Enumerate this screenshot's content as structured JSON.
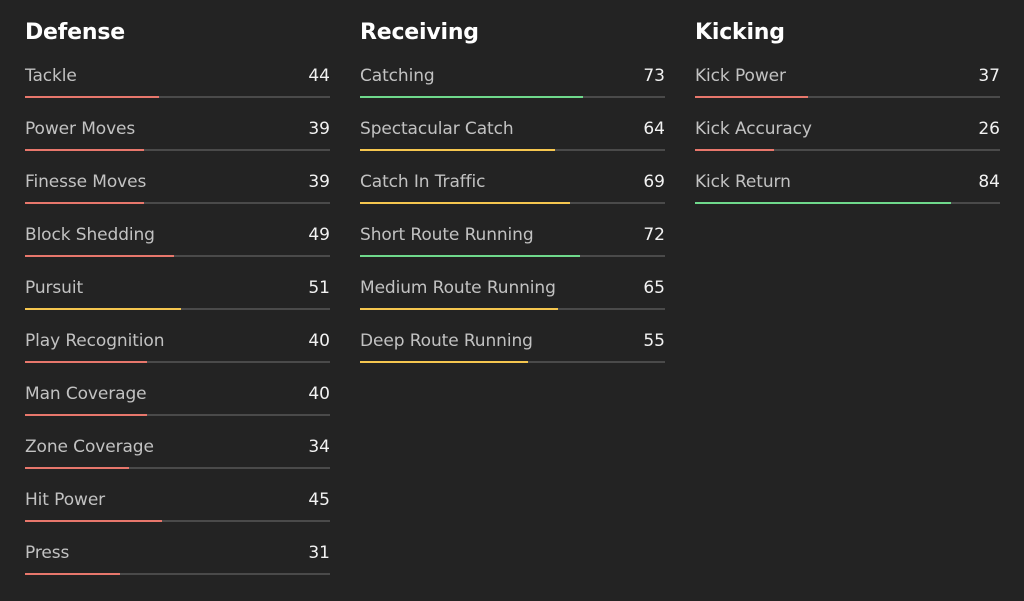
{
  "colors": {
    "low": "#e8776c",
    "mid": "#f5c64f",
    "high": "#6fd98c",
    "track": "#4a4a4a"
  },
  "sections": [
    {
      "title": "Defense",
      "stats": [
        {
          "label": "Tackle",
          "value": "44",
          "rating": 44,
          "tier": "low"
        },
        {
          "label": "Power Moves",
          "value": "39",
          "rating": 39,
          "tier": "low"
        },
        {
          "label": "Finesse Moves",
          "value": "39",
          "rating": 39,
          "tier": "low"
        },
        {
          "label": "Block Shedding",
          "value": "49",
          "rating": 49,
          "tier": "low"
        },
        {
          "label": "Pursuit",
          "value": "51",
          "rating": 51,
          "tier": "mid"
        },
        {
          "label": "Play Recognition",
          "value": "40",
          "rating": 40,
          "tier": "low"
        },
        {
          "label": "Man Coverage",
          "value": "40",
          "rating": 40,
          "tier": "low"
        },
        {
          "label": "Zone Coverage",
          "value": "34",
          "rating": 34,
          "tier": "low"
        },
        {
          "label": "Hit Power",
          "value": "45",
          "rating": 45,
          "tier": "low"
        },
        {
          "label": "Press",
          "value": "31",
          "rating": 31,
          "tier": "low"
        }
      ]
    },
    {
      "title": "Receiving",
      "stats": [
        {
          "label": "Catching",
          "value": "73",
          "rating": 73,
          "tier": "high"
        },
        {
          "label": "Spectacular Catch",
          "value": "64",
          "rating": 64,
          "tier": "mid"
        },
        {
          "label": "Catch In Traffic",
          "value": "69",
          "rating": 69,
          "tier": "mid"
        },
        {
          "label": "Short Route Running",
          "value": "72",
          "rating": 72,
          "tier": "high"
        },
        {
          "label": "Medium Route Running",
          "value": "65",
          "rating": 65,
          "tier": "mid"
        },
        {
          "label": "Deep Route Running",
          "value": "55",
          "rating": 55,
          "tier": "mid"
        }
      ]
    },
    {
      "title": "Kicking",
      "stats": [
        {
          "label": "Kick Power",
          "value": "37",
          "rating": 37,
          "tier": "low"
        },
        {
          "label": "Kick Accuracy",
          "value": "26",
          "rating": 26,
          "tier": "low"
        },
        {
          "label": "Kick Return",
          "value": "84",
          "rating": 84,
          "tier": "high"
        }
      ]
    }
  ]
}
